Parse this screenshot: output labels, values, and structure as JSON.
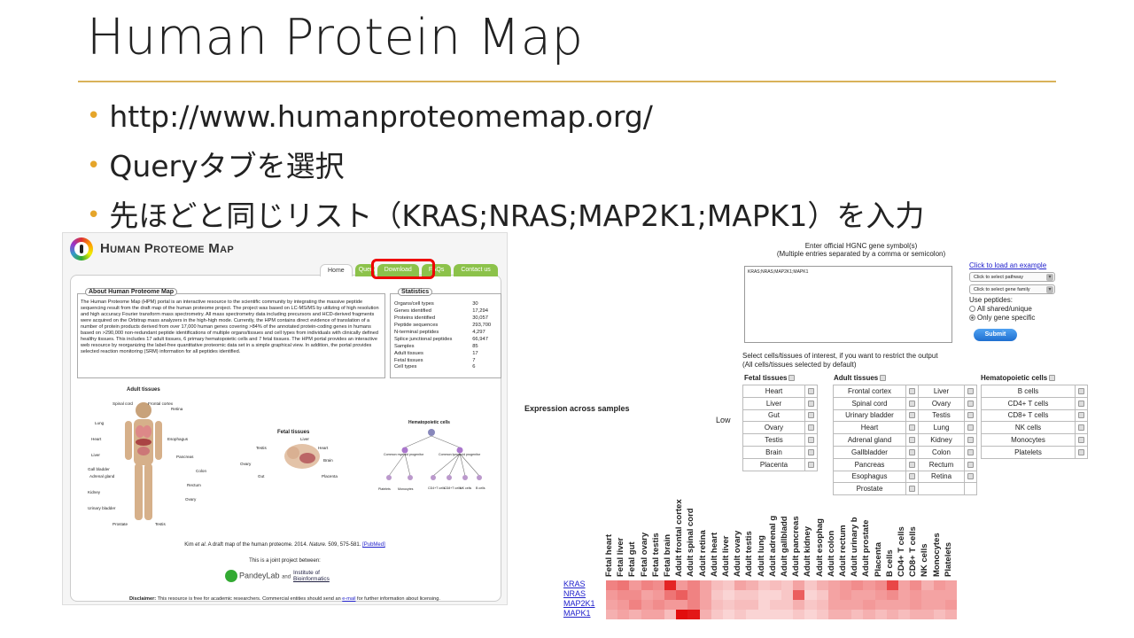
{
  "slide": {
    "title": "Human Protein Map",
    "bullets": [
      "http://www.humanproteomemap.org/",
      "Queryタブを選択",
      "先ほどと同じリスト（KRAS;NRAS;MAP2K1;MAPK1）を入力"
    ]
  },
  "hpm": {
    "logo_text": "Human Proteome Map",
    "tabs": [
      "Home",
      "Query",
      "Download",
      "FAQs",
      "Contact us"
    ],
    "about_title": "About Human Proteome Map",
    "about_text": "The Human Proteome Map (HPM) portal is an interactive resource to the scientific community by integrating the massive peptide sequencing result from the draft map of the human proteome project. The project was based on LC-MS/MS by utilizing of high resolution and high accuracy Fourier transform mass spectrometry. All mass spectrometry data including precursors and HCD-derived fragments were acquired on the Orbitrap mass analyzers in the high-high mode. Currently, the HPM contains direct evidence of translation of a number of protein products derived from over 17,000 human genes covering >84% of the annotated protein-coding genes in humans based on >290,000 non-redundant peptide identifications of multiple organs/tissues and cell types from individuals with clinically defined healthy tissues. This includes 17 adult tissues, 6 primary hematopoietic cells and 7 fetal tissues. The HPM portal provides an interactive web resource by reorganizing the label-free quantitative proteomic data set in a simple graphical view. In addition, the portal provides selected reaction monitoring (SRM) information for all peptides identified.",
    "stats_title": "Statistics",
    "stats": [
      [
        "Organs/cell types",
        "30"
      ],
      [
        "Genes identified",
        "17,294"
      ],
      [
        "Proteins identified",
        "30,057"
      ],
      [
        "Peptide sequences",
        "293,700"
      ],
      [
        "N-terminal peptides",
        "4,297"
      ],
      [
        "Splice junctional peptides",
        "66,947"
      ],
      [
        "Samples",
        "85"
      ],
      [
        "Adult tissues",
        "17"
      ],
      [
        "Fetal tissues",
        "7"
      ],
      [
        "Cell types",
        "6"
      ]
    ],
    "fig": {
      "adult_title": "Adult tissues",
      "fetal_title": "Fetal tissues",
      "hema_title": "Hematopoietic cells",
      "adult_labels": [
        "Spinal cord",
        "Frontal cortex",
        "Retina",
        "Lung",
        "Heart",
        "Esophagus",
        "Liver",
        "Pancreas",
        "Gall bladder",
        "Colon",
        "Adrenal gland",
        "Rectum",
        "Kidney",
        "Ovary",
        "Urinary bladder",
        "Prostate",
        "Testis"
      ],
      "fetal_labels": [
        "Liver",
        "Testis",
        "Heart",
        "Ovary",
        "Brain",
        "Gut",
        "Placenta"
      ],
      "hema_labels": [
        "Common myeloid progenitor",
        "Common lymphoid progenitor",
        "Platelets",
        "Monocytes",
        "CD4+T cells",
        "CD8+T cells",
        "NK cells",
        "B cells"
      ]
    },
    "ref_prefix": "Kim ",
    "ref_etal": "et al.",
    "ref_mid": " A draft map of the human proteome. 2014. ",
    "ref_journal": "Nature.",
    "ref_tail": " 509, 575-581. ",
    "ref_link": "[PubMed]",
    "joint": "This is a joint project between:",
    "pandey": "PandeyLab",
    "and": "and",
    "iob_1": "Institute of",
    "iob_2": "Bioinformatics",
    "disclaimer_bold": "Disclaimer:",
    "disclaimer_text": " This resource is free for academic researchers. Commercial entities should send an ",
    "disclaimer_link": "e-mail",
    "disclaimer_tail": " for further information about licensing."
  },
  "query": {
    "header_1": "Enter official HGNC gene symbol(s)",
    "header_2": "(Multiple entries separated by a comma or semicolon)",
    "textarea_value": "KRAS;NRAS;MAP2K1;MAPK1",
    "example_link": "Click to load an example",
    "pathway_select": "Click to select pathway",
    "family_select": "Click to select gene family",
    "use_peptides": "Use peptides:",
    "opt_all": "All shared/unique",
    "opt_only": "Only gene specific",
    "submit": "Submit",
    "select_note_1": "Select cells/tissues of interest, if you want to restrict the output",
    "select_note_2": "(All cells/tissues selected by default)",
    "fetal_title": "Fetal tissues",
    "adult_title": "Adult tissues",
    "hema_title": "Hematopoietic cells",
    "fetal": [
      "Heart",
      "Liver",
      "Gut",
      "Ovary",
      "Testis",
      "Brain",
      "Placenta"
    ],
    "adult_col1": [
      "Frontal cortex",
      "Spinal cord",
      "Urinary bladder",
      "Heart",
      "Adrenal gland",
      "Gallbladder",
      "Pancreas",
      "Esophagus",
      "Prostate"
    ],
    "adult_col2": [
      "Liver",
      "Ovary",
      "Testis",
      "Lung",
      "Kidney",
      "Colon",
      "Rectum",
      "Retina",
      ""
    ],
    "hema": [
      "B cells",
      "CD4+ T cells",
      "CD8+ T cells",
      "NK cells",
      "Monocytes",
      "Platelets"
    ]
  },
  "expression": {
    "title": "Expression across samples",
    "low_label": "Low",
    "columns": [
      "Fetal heart",
      "Fetal liver",
      "Fetal gut",
      "Fetal ovary",
      "Fetal testis",
      "Fetal brain",
      "Adult frontal cortex",
      "Adult spinal cord",
      "Adult retina",
      "Adult heart",
      "Adult liver",
      "Adult ovary",
      "Adult testis",
      "Adult lung",
      "Adult adrenal g",
      "Adult gallbladd",
      "Adult pancreas",
      "Adult kidney",
      "Adult esophag",
      "Adult colon",
      "Adult rectum",
      "Adult urinary b",
      "Adult prostate",
      "Placenta",
      "B cells",
      "CD4+ T cells",
      "CD8+ T cells",
      "NK cells",
      "Monocytes",
      "Platelets"
    ],
    "genes": [
      "KRAS",
      "NRAS",
      "MAP2K1",
      "MAPK1"
    ],
    "levels": [
      [
        0.45,
        0.5,
        0.35,
        0.45,
        0.4,
        0.85,
        0.35,
        0.45,
        0.3,
        0.2,
        0.15,
        0.3,
        0.25,
        0.15,
        0.2,
        0.15,
        0.3,
        0.15,
        0.25,
        0.3,
        0.35,
        0.4,
        0.35,
        0.4,
        0.7,
        0.3,
        0.4,
        0.25,
        0.35,
        0.3
      ],
      [
        0.35,
        0.4,
        0.4,
        0.3,
        0.35,
        0.5,
        0.6,
        0.45,
        0.3,
        0.15,
        0.1,
        0.15,
        0.15,
        0.1,
        0.1,
        0.15,
        0.6,
        0.1,
        0.15,
        0.3,
        0.35,
        0.3,
        0.3,
        0.35,
        0.4,
        0.3,
        0.35,
        0.3,
        0.3,
        0.3
      ],
      [
        0.3,
        0.35,
        0.45,
        0.35,
        0.4,
        0.35,
        0.35,
        0.45,
        0.3,
        0.2,
        0.15,
        0.2,
        0.2,
        0.1,
        0.15,
        0.15,
        0.25,
        0.15,
        0.2,
        0.3,
        0.3,
        0.3,
        0.35,
        0.3,
        0.3,
        0.3,
        0.35,
        0.3,
        0.3,
        0.35
      ],
      [
        0.25,
        0.3,
        0.25,
        0.3,
        0.3,
        0.2,
        0.95,
        0.9,
        0.25,
        0.15,
        0.1,
        0.15,
        0.1,
        0.1,
        0.1,
        0.1,
        0.15,
        0.1,
        0.15,
        0.25,
        0.25,
        0.2,
        0.25,
        0.2,
        0.25,
        0.2,
        0.25,
        0.25,
        0.2,
        0.25
      ]
    ],
    "color": "#e00000"
  }
}
